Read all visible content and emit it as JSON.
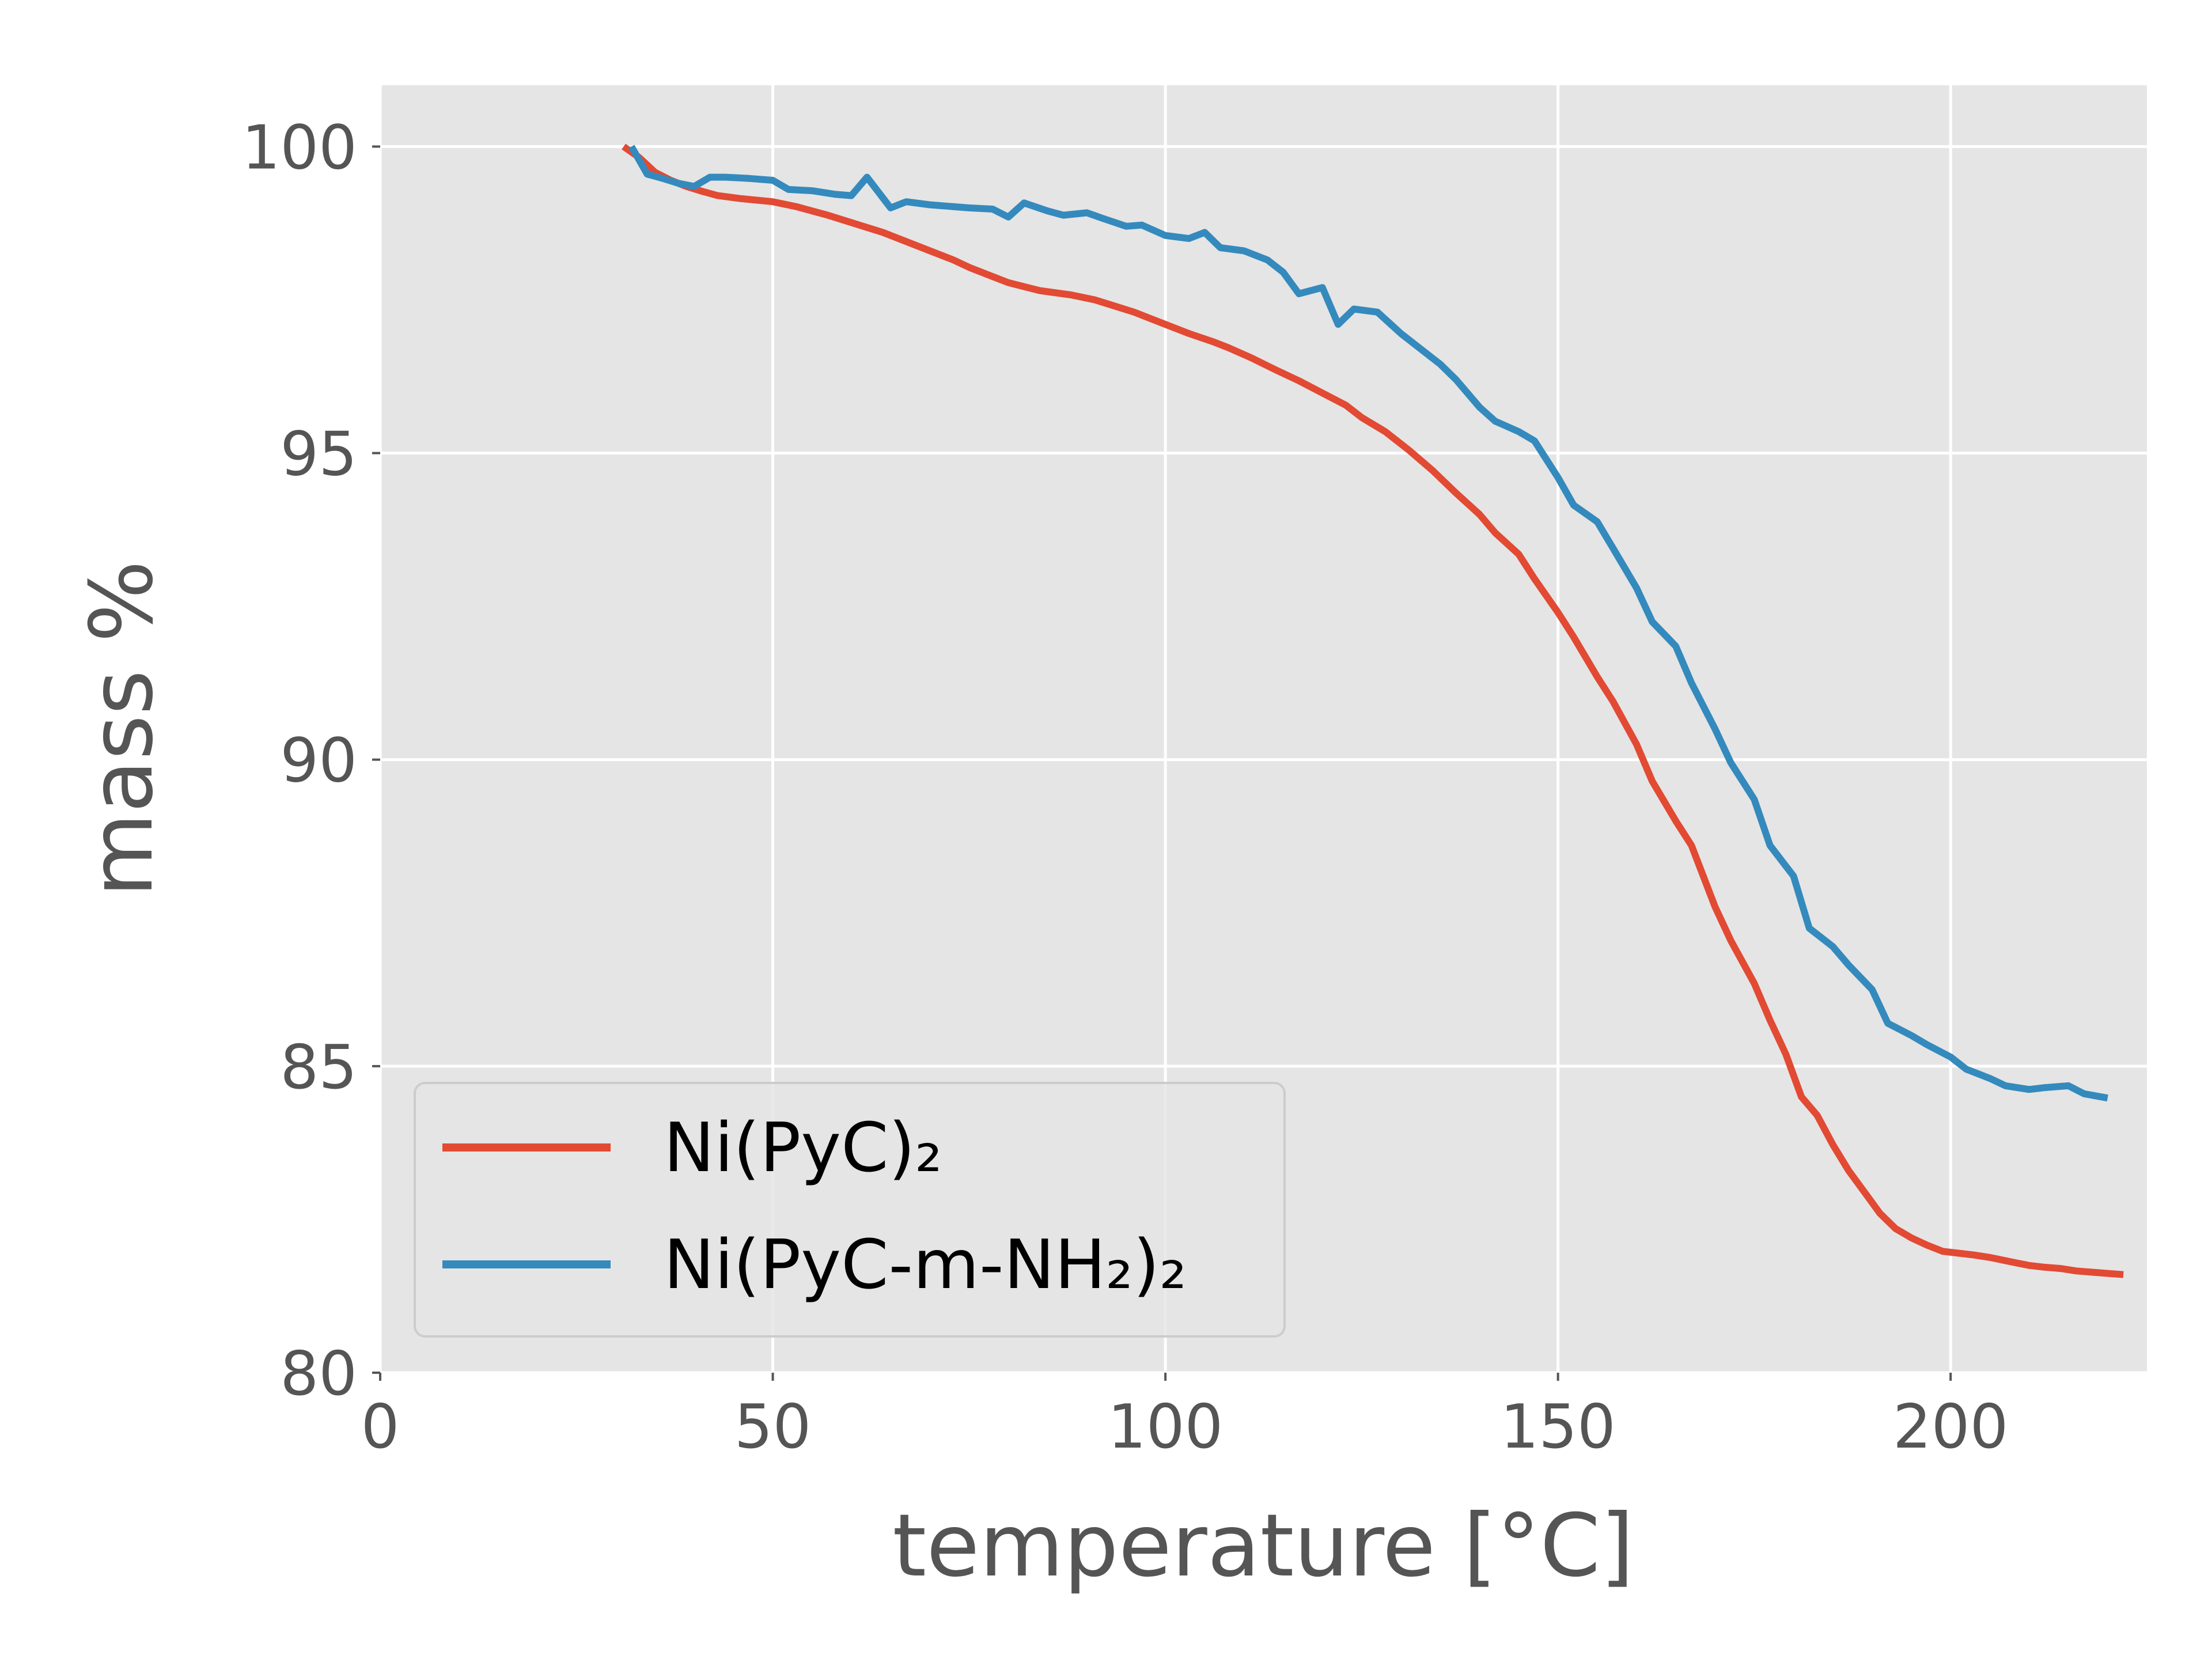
{
  "chart_data": {
    "type": "line",
    "title": "",
    "xlabel": "temperature [°C]",
    "ylabel": "mass %",
    "xlim": [
      0,
      225
    ],
    "ylim": [
      80,
      101
    ],
    "xticks": [
      0,
      50,
      100,
      150,
      200
    ],
    "yticks": [
      80,
      85,
      90,
      95,
      100
    ],
    "xtick_labels": [
      "0",
      "50",
      "100",
      "150",
      "200"
    ],
    "ytick_labels": [
      "80",
      "85",
      "90",
      "95",
      "100"
    ],
    "grid": true,
    "legend_position": "lower-left",
    "style": "ggplot",
    "series": [
      {
        "name": "Ni(PyC)₂",
        "color": "#E24A33",
        "x": [
          31,
          33,
          35,
          37,
          39,
          41,
          43,
          46,
          50,
          53,
          55,
          57,
          60,
          62,
          64,
          67,
          70,
          73,
          75,
          78,
          80,
          84,
          88,
          91,
          93,
          96,
          100,
          103,
          106,
          108,
          111,
          114,
          117,
          120,
          123,
          125,
          128,
          131,
          134,
          137,
          140,
          142,
          145,
          147,
          150,
          152,
          155,
          157,
          160,
          162,
          165,
          167,
          170,
          172,
          175,
          177,
          179,
          181,
          183,
          185,
          187,
          189,
          191,
          193,
          195,
          197,
          199,
          201,
          203,
          205,
          208,
          210,
          212,
          214,
          216,
          218,
          220,
          222
        ],
        "y": [
          100,
          99.82,
          99.58,
          99.45,
          99.35,
          99.27,
          99.2,
          99.15,
          99.1,
          99.02,
          98.95,
          98.88,
          98.76,
          98.68,
          98.6,
          98.45,
          98.3,
          98.15,
          98.03,
          97.88,
          97.78,
          97.65,
          97.58,
          97.5,
          97.42,
          97.3,
          97.1,
          96.95,
          96.82,
          96.72,
          96.55,
          96.36,
          96.18,
          95.98,
          95.78,
          95.58,
          95.35,
          95.05,
          94.72,
          94.35,
          94.0,
          93.7,
          93.35,
          92.95,
          92.4,
          92.0,
          91.35,
          90.95,
          90.25,
          89.65,
          89.0,
          88.6,
          87.6,
          87.05,
          86.35,
          85.75,
          85.2,
          84.5,
          84.2,
          83.72,
          83.3,
          82.95,
          82.6,
          82.35,
          82.2,
          82.08,
          81.98,
          81.95,
          81.92,
          81.88,
          81.8,
          81.75,
          81.72,
          81.7,
          81.66,
          81.64,
          81.62,
          81.6
        ]
      },
      {
        "name": "Ni(PyC-m-NH₂)₂",
        "color": "#348ABD",
        "x": [
          32,
          34,
          36,
          38,
          40,
          42,
          44,
          47,
          50,
          52,
          55,
          58,
          60,
          62,
          65,
          67,
          70,
          72,
          75,
          78,
          80,
          82,
          85,
          87,
          90,
          92,
          95,
          97,
          100,
          103,
          105,
          107,
          110,
          113,
          115,
          117,
          120,
          122,
          124,
          127,
          130,
          132,
          135,
          137,
          140,
          142,
          145,
          147,
          150,
          152,
          155,
          157,
          160,
          162,
          165,
          167,
          170,
          172,
          175,
          177,
          180,
          182,
          185,
          187,
          190,
          192,
          195,
          197,
          200,
          202,
          205,
          207,
          210,
          212,
          215,
          217,
          220
        ],
        "y": [
          100,
          99.55,
          99.48,
          99.4,
          99.35,
          99.5,
          99.5,
          99.48,
          99.45,
          99.3,
          99.28,
          99.22,
          99.2,
          99.5,
          99.0,
          99.1,
          99.05,
          99.03,
          99.0,
          98.98,
          98.85,
          99.08,
          98.95,
          98.88,
          98.92,
          98.83,
          98.7,
          98.72,
          98.55,
          98.5,
          98.6,
          98.35,
          98.3,
          98.15,
          97.95,
          97.6,
          97.7,
          97.1,
          97.35,
          97.3,
          96.95,
          96.75,
          96.45,
          96.2,
          95.75,
          95.52,
          95.35,
          95.2,
          94.6,
          94.15,
          93.88,
          93.45,
          92.8,
          92.25,
          91.85,
          91.25,
          90.5,
          89.95,
          89.35,
          88.6,
          88.1,
          87.25,
          86.95,
          86.65,
          86.25,
          85.7,
          85.5,
          85.35,
          85.15,
          84.95,
          84.8,
          84.68,
          84.62,
          84.65,
          84.68,
          84.55,
          84.48
        ]
      }
    ]
  }
}
